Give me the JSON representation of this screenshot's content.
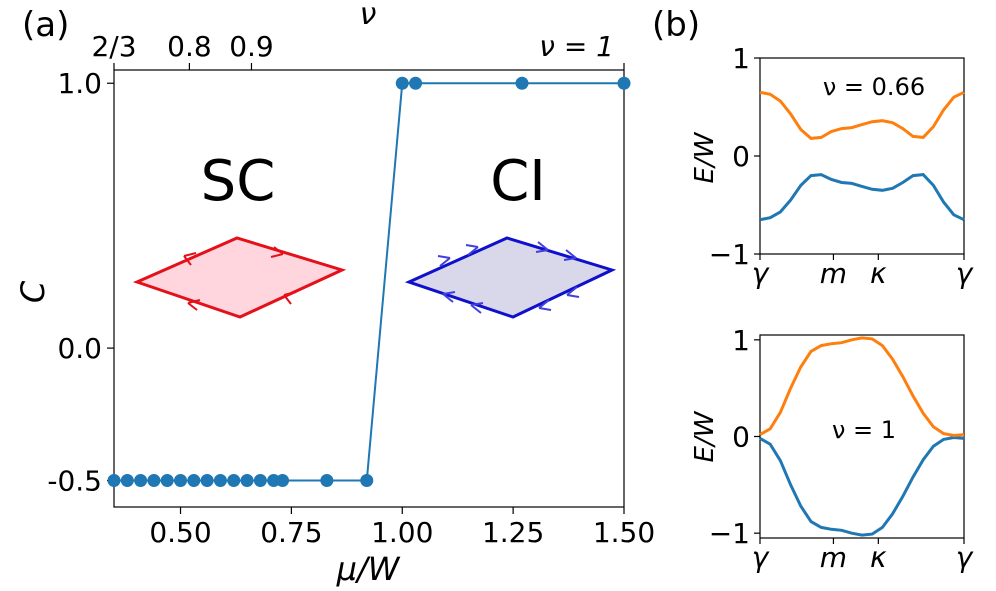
{
  "panel_a": {
    "label": "(a)",
    "xlabel": "μ/W",
    "ylabel": "C",
    "top_axis_label": "ν",
    "top_ticks": [
      {
        "label": "2/3",
        "x": 0.35
      },
      {
        "label": "0.8",
        "x": 0.52
      },
      {
        "label": "0.9",
        "x": 0.66
      },
      {
        "label": "ν = 1",
        "x": 1.5
      }
    ],
    "sc_label": "SC",
    "ci_label": "CI",
    "sc_color": "#1f77b4",
    "ci_color": "#8b2222",
    "diamond_sc_color": "#e4101a",
    "diamond_sc_fill": "#ffd6dd",
    "diamond_ci_color": "#1010cc",
    "diamond_ci_fill": "#d8d8ea"
  },
  "panel_b": {
    "label": "(b)",
    "ylabel": "E/W",
    "top_label": "ν = 0.66",
    "bottom_label": "ν = 1",
    "xticks": [
      "γ",
      "m",
      "κ",
      "γ"
    ],
    "top_yticks": [
      "1",
      "0",
      "−1"
    ],
    "bottom_yticks": [
      "1",
      "0",
      "−1"
    ],
    "band_colors": [
      "#1f77b4",
      "#ff7f0e"
    ]
  },
  "chart_data": [
    {
      "type": "line",
      "title": "",
      "xlabel": "μ/W",
      "ylabel": "C",
      "xlim": [
        0.35,
        1.5
      ],
      "ylim": [
        -0.6,
        1.05
      ],
      "xticks": [
        0.5,
        0.75,
        1.0,
        1.25,
        1.5
      ],
      "xtick_labels": [
        "0.50",
        "0.75",
        "1.00",
        "1.25",
        "1.50"
      ],
      "yticks": [
        -0.5,
        0.0,
        1.0
      ],
      "ytick_labels": [
        "-0.5",
        "0.0",
        "1.0"
      ],
      "series": [
        {
          "name": "C",
          "color": "#1f77b4",
          "x": [
            0.35,
            0.38,
            0.41,
            0.44,
            0.47,
            0.5,
            0.53,
            0.56,
            0.59,
            0.62,
            0.65,
            0.68,
            0.71,
            0.73,
            0.83,
            0.92,
            1.0,
            1.03,
            1.27,
            1.5
          ],
          "y": [
            -0.5,
            -0.5,
            -0.5,
            -0.5,
            -0.5,
            -0.5,
            -0.5,
            -0.5,
            -0.5,
            -0.5,
            -0.5,
            -0.5,
            -0.5,
            -0.5,
            -0.5,
            -0.5,
            1.0,
            1.0,
            1.0,
            1.0
          ]
        }
      ]
    },
    {
      "type": "line",
      "title": "ν = 0.66",
      "ylabel": "E/W",
      "ylim": [
        -1,
        1
      ],
      "xticks": [
        "γ",
        "m",
        "κ",
        "γ"
      ],
      "series": [
        {
          "name": "lower band",
          "color": "#1f77b4",
          "x": [
            0,
            0.05,
            0.1,
            0.15,
            0.2,
            0.25,
            0.3,
            0.35,
            0.4,
            0.45,
            0.5,
            0.55,
            0.6,
            0.65,
            0.7,
            0.75,
            0.8,
            0.85,
            0.9,
            0.95,
            1.0
          ],
          "y": [
            -0.65,
            -0.63,
            -0.57,
            -0.45,
            -0.3,
            -0.2,
            -0.19,
            -0.24,
            -0.27,
            -0.28,
            -0.31,
            -0.34,
            -0.35,
            -0.33,
            -0.27,
            -0.2,
            -0.19,
            -0.3,
            -0.47,
            -0.6,
            -0.65
          ]
        },
        {
          "name": "upper band",
          "color": "#ff7f0e",
          "x": [
            0,
            0.05,
            0.1,
            0.15,
            0.2,
            0.25,
            0.3,
            0.35,
            0.4,
            0.45,
            0.5,
            0.55,
            0.6,
            0.65,
            0.7,
            0.75,
            0.8,
            0.85,
            0.9,
            0.95,
            1.0
          ],
          "y": [
            0.65,
            0.63,
            0.56,
            0.43,
            0.27,
            0.18,
            0.19,
            0.25,
            0.28,
            0.29,
            0.32,
            0.35,
            0.36,
            0.34,
            0.28,
            0.2,
            0.19,
            0.3,
            0.47,
            0.6,
            0.65
          ]
        }
      ]
    },
    {
      "type": "line",
      "title": "ν = 1",
      "ylabel": "E/W",
      "ylim": [
        -1.05,
        1.05
      ],
      "xticks": [
        "γ",
        "m",
        "κ",
        "γ"
      ],
      "series": [
        {
          "name": "lower band",
          "color": "#1f77b4",
          "x": [
            0,
            0.05,
            0.1,
            0.15,
            0.2,
            0.25,
            0.3,
            0.35,
            0.4,
            0.45,
            0.5,
            0.55,
            0.6,
            0.65,
            0.7,
            0.75,
            0.8,
            0.85,
            0.9,
            0.95,
            1.0
          ],
          "y": [
            -0.02,
            -0.08,
            -0.25,
            -0.5,
            -0.72,
            -0.88,
            -0.94,
            -0.96,
            -0.97,
            -1.0,
            -1.02,
            -1.01,
            -0.94,
            -0.8,
            -0.62,
            -0.42,
            -0.24,
            -0.1,
            -0.03,
            -0.01,
            -0.02
          ]
        },
        {
          "name": "upper band",
          "color": "#ff7f0e",
          "x": [
            0,
            0.05,
            0.1,
            0.15,
            0.2,
            0.25,
            0.3,
            0.35,
            0.4,
            0.45,
            0.5,
            0.55,
            0.6,
            0.65,
            0.7,
            0.75,
            0.8,
            0.85,
            0.9,
            0.95,
            1.0
          ],
          "y": [
            0.02,
            0.08,
            0.25,
            0.5,
            0.72,
            0.88,
            0.94,
            0.96,
            0.97,
            1.0,
            1.02,
            1.01,
            0.94,
            0.8,
            0.62,
            0.42,
            0.24,
            0.1,
            0.03,
            0.01,
            0.02
          ]
        }
      ]
    }
  ]
}
